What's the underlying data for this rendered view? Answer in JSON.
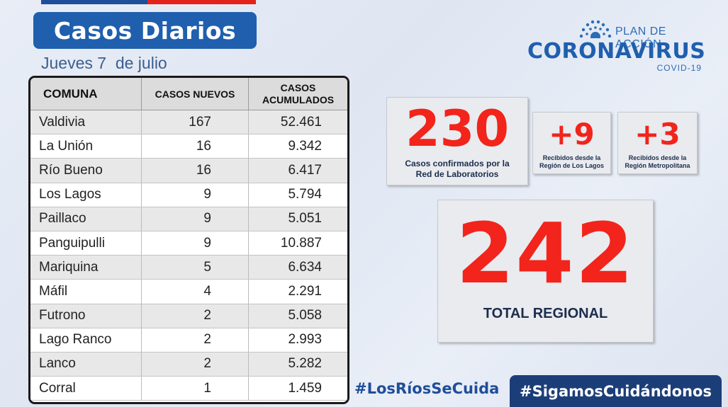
{
  "header": {
    "title": "Casos Diarios",
    "date": "Jueves 7  de julio"
  },
  "logo": {
    "plan": "PLAN DE ACCIÓN",
    "name": "CORONAVIRUS",
    "sub": "COVID-19"
  },
  "table": {
    "headers": [
      "COMUNA",
      "CASOS NUEVOS",
      "CASOS ACUMULADOS"
    ],
    "rows": [
      {
        "comuna": "Valdivia",
        "nuevos": "167",
        "acumulados": "52.461"
      },
      {
        "comuna": "La Unión",
        "nuevos": "16",
        "acumulados": "9.342"
      },
      {
        "comuna": "Río Bueno",
        "nuevos": "16",
        "acumulados": "6.417"
      },
      {
        "comuna": "Los Lagos",
        "nuevos": "9",
        "acumulados": "5.794"
      },
      {
        "comuna": "Paillaco",
        "nuevos": "9",
        "acumulados": "5.051"
      },
      {
        "comuna": "Panguipulli",
        "nuevos": "9",
        "acumulados": "10.887"
      },
      {
        "comuna": "Mariquina",
        "nuevos": "5",
        "acumulados": "6.634"
      },
      {
        "comuna": "Máfil",
        "nuevos": "4",
        "acumulados": "2.291"
      },
      {
        "comuna": "Futrono",
        "nuevos": "2",
        "acumulados": "5.058"
      },
      {
        "comuna": "Lago Ranco",
        "nuevos": "2",
        "acumulados": "2.993"
      },
      {
        "comuna": "Lanco",
        "nuevos": "2",
        "acumulados": "5.282"
      },
      {
        "comuna": "Corral",
        "nuevos": "1",
        "acumulados": "1.459"
      }
    ]
  },
  "stats": {
    "lab": {
      "value": "230",
      "label_line1": "Casos confirmados por la",
      "label_line2": "Red de Laboratorios"
    },
    "lagos": {
      "value": "+9",
      "label_line1": "Recibidos desde la",
      "label_line2": "Región de Los Lagos"
    },
    "metro": {
      "value": "+3",
      "label_line1": "Recibidos desde la",
      "label_line2": "Región Metropolitana"
    },
    "total": {
      "value": "242",
      "label": "TOTAL REGIONAL"
    }
  },
  "hashtags": {
    "left": "#LosRíosSeCuida",
    "right": "#SigamosCuidándonos"
  },
  "colors": {
    "accent": "#1f5fae",
    "highlight": "#f2241b",
    "dark": "#1c3e78"
  }
}
